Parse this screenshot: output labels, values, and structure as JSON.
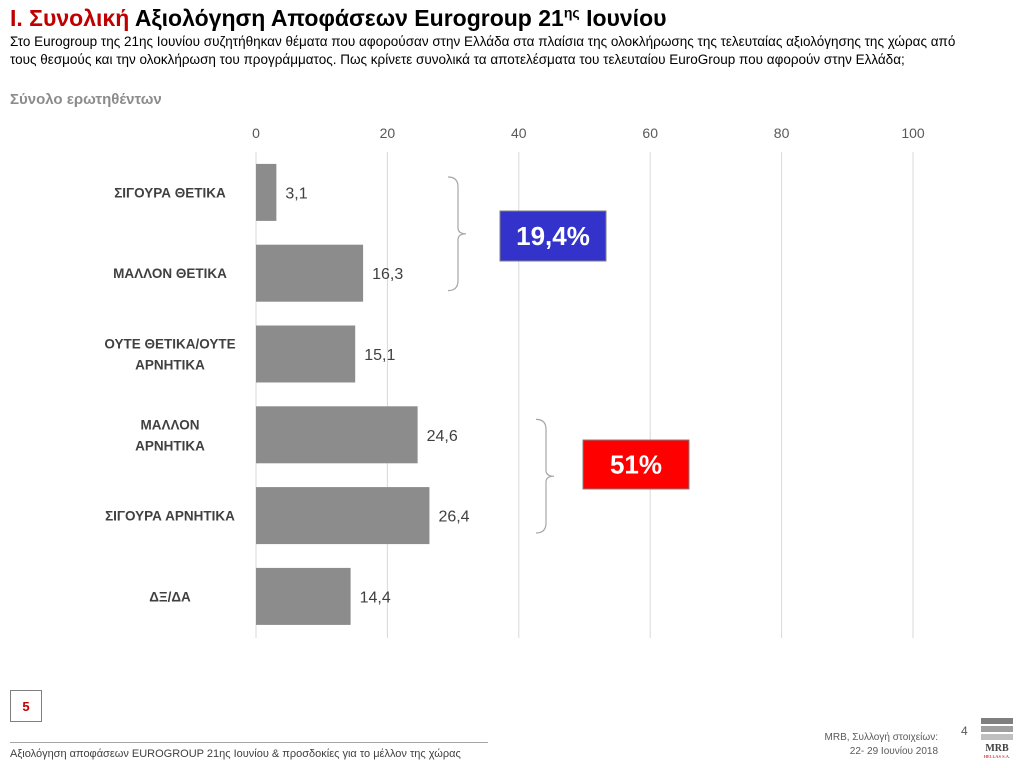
{
  "header": {
    "title_highlight": "Ι. Συνολική",
    "title_main": "Αξιολόγηση Αποφάσεων Eurogroup 21",
    "title_sup": "ης",
    "title_end": "Ιουνίου",
    "question": "Στο Eurogroup της 21ης Ιουνίου συζητήθηκαν θέματα που αφορούσαν στην Ελλάδα στα πλαίσια της ολοκλήρωσης της τελευταίας αξιολόγησης της χώρας από τους θεσμούς και την ολοκλήρωση του προγράμματος. Πως κρίνετε συνολικά τα αποτελέσματα του τελευταίου EuroGroup που αφορούν στην Ελλάδα;",
    "base": "Σύνολο ερωτηθέντων"
  },
  "chart_data": {
    "type": "bar",
    "orientation": "horizontal",
    "categories": [
      "ΣΙΓΟΥΡΑ ΘΕΤΙΚΑ",
      "ΜΑΛΛΟΝ ΘΕΤΙΚΑ",
      "ΟΥΤΕ ΘΕΤΙΚΑ/ΟΥΤΕ ΑΡΝΗΤΙΚΑ",
      "ΜΑΛΛΟΝ ΑΡΝΗΤΙΚΑ",
      "ΣΙΓΟΥΡΑ ΑΡΝΗΤΙΚΑ",
      "ΔΞ/ΔΑ"
    ],
    "category_lines": [
      [
        "ΣΙΓΟΥΡΑ ΘΕΤΙΚΑ"
      ],
      [
        "ΜΑΛΛΟΝ ΘΕΤΙΚΑ"
      ],
      [
        "ΟΥΤΕ ΘΕΤΙΚΑ/ΟΥΤΕ",
        "ΑΡΝΗΤΙΚΑ"
      ],
      [
        "ΜΑΛΛΟΝ",
        "ΑΡΝΗΤΙΚΑ"
      ],
      [
        "ΣΙΓΟΥΡΑ ΑΡΝΗΤΙΚΑ"
      ],
      [
        "ΔΞ/ΔΑ"
      ]
    ],
    "values": [
      3.1,
      16.3,
      15.1,
      24.6,
      26.4,
      14.4
    ],
    "value_labels": [
      "3,1",
      "16,3",
      "15,1",
      "24,6",
      "26,4",
      "14,4"
    ],
    "xlim": [
      0,
      100
    ],
    "xticks": [
      0,
      20,
      40,
      60,
      80,
      100
    ],
    "grid": true,
    "bar_color": "#8c8c8c",
    "annotations": [
      {
        "text": "19,4%",
        "covers": [
          0,
          1
        ],
        "color": "#3333cc"
      },
      {
        "text": "51%",
        "covers": [
          3,
          4
        ],
        "color": "#ff0000"
      }
    ]
  },
  "footer": {
    "slide_number": "5",
    "text": "Αξιολόγηση αποφάσεων EUROGROUP 21ης Ιουνίου & προσδοκίες για το μέλλον της χώρας",
    "source_line1": "MRB, Συλλογή στοιχείων:",
    "source_line2": "22- 29 Ιουνίου 2018",
    "page_number": "4",
    "logo_text": "MRB",
    "logo_subtext": "HELLAS S.A."
  }
}
